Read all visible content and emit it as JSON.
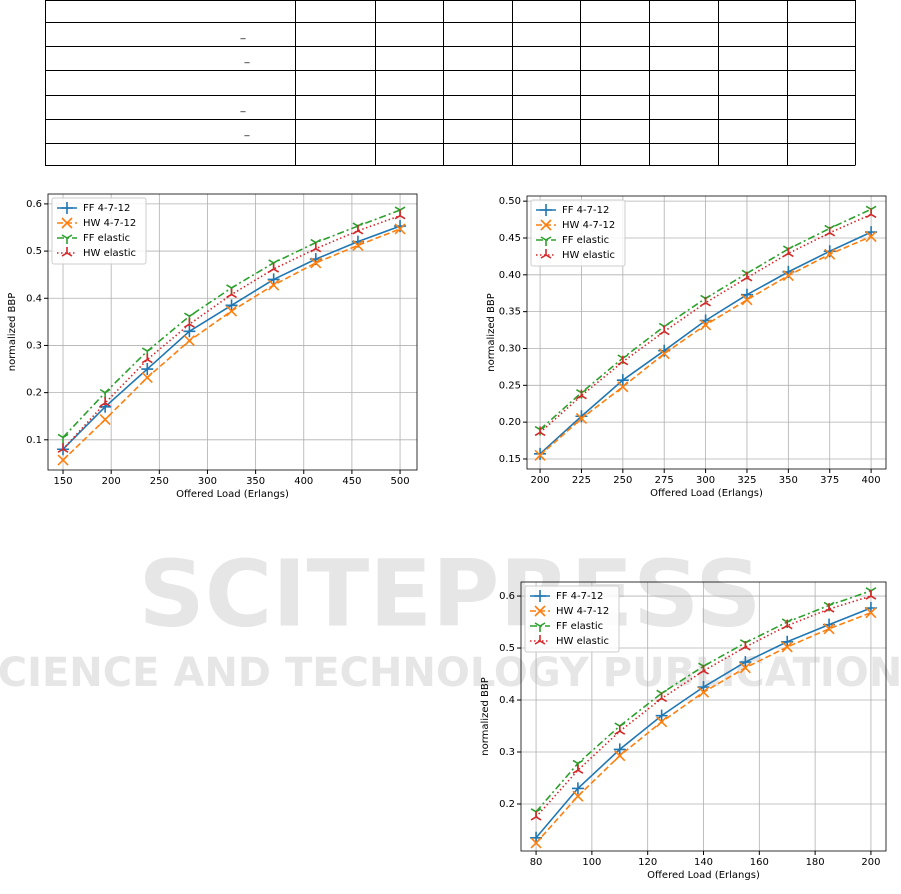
{
  "table": {
    "marks": [
      "_",
      "_",
      "_",
      "_"
    ]
  },
  "watermark": {
    "title": "SCITEPRESS",
    "subtitle": "SCIENCE AND TECHNOLOGY PUBLICATIONS"
  },
  "chart_data": [
    {
      "type": "line",
      "xlabel": "Offered Load (Erlangs)",
      "ylabel": "normalized BBP",
      "grid": true,
      "legend": "upper left",
      "x": [
        150,
        193.75,
        237.5,
        281.25,
        325,
        368.75,
        412.5,
        456.25,
        500
      ],
      "xlim": [
        134.4,
        517.6
      ],
      "xticks": [
        150,
        200,
        250,
        300,
        350,
        400,
        450,
        500
      ],
      "ylim": [
        0.036,
        0.621
      ],
      "yticks": [
        0.1,
        0.2,
        0.3,
        0.4,
        0.5,
        0.6
      ],
      "series": [
        {
          "name": "FF 4-7-12",
          "color": "#1f77b4",
          "linestyle": "solid",
          "marker": "plus",
          "values": [
            0.08,
            0.17,
            0.25,
            0.33,
            0.385,
            0.44,
            0.483,
            0.52,
            0.553
          ]
        },
        {
          "name": "HW 4-7-12",
          "color": "#ff7f0e",
          "linestyle": "dashed",
          "marker": "x",
          "values": [
            0.057,
            0.143,
            0.232,
            0.31,
            0.373,
            0.428,
            0.475,
            0.512,
            0.547
          ]
        },
        {
          "name": "FF elastic",
          "color": "#2ca02c",
          "linestyle": "dashdot",
          "marker": "tri_down",
          "values": [
            0.105,
            0.2,
            0.288,
            0.362,
            0.422,
            0.475,
            0.518,
            0.553,
            0.587
          ]
        },
        {
          "name": "HW elastic",
          "color": "#d62728",
          "linestyle": "dotted",
          "marker": "tri_up",
          "values": [
            0.08,
            0.178,
            0.27,
            0.345,
            0.408,
            0.462,
            0.505,
            0.543,
            0.575
          ]
        }
      ]
    },
    {
      "type": "line",
      "xlabel": "Offered Load (Erlangs)",
      "ylabel": "normalized BBP",
      "grid": true,
      "legend": "upper left",
      "x": [
        200,
        225,
        250,
        275,
        300,
        325,
        350,
        375,
        400
      ],
      "xlim": [
        192.1,
        409
      ],
      "xticks": [
        200,
        225,
        250,
        275,
        300,
        325,
        350,
        375,
        400
      ],
      "ylim": [
        0.1364,
        0.507
      ],
      "yticks": [
        0.15,
        {
          "value": 0.2,
          "label": "0.20"
        },
        0.25,
        {
          "value": 0.3,
          "label": "0.30"
        },
        0.35,
        {
          "value": 0.4,
          "label": "0.40"
        },
        0.45,
        {
          "value": 0.5,
          "label": "0.50"
        }
      ],
      "series": [
        {
          "name": "FF 4-7-12",
          "color": "#1f77b4",
          "linestyle": "solid",
          "marker": "plus",
          "values": [
            0.157,
            0.208,
            0.257,
            0.297,
            0.338,
            0.373,
            0.404,
            0.432,
            0.458
          ]
        },
        {
          "name": "HW 4-7-12",
          "color": "#ff7f0e",
          "linestyle": "dashed",
          "marker": "x",
          "values": [
            0.155,
            0.205,
            0.248,
            0.293,
            0.332,
            0.366,
            0.399,
            0.428,
            0.452
          ]
        },
        {
          "name": "FF elastic",
          "color": "#2ca02c",
          "linestyle": "dashdot",
          "marker": "tri_down",
          "values": [
            0.19,
            0.24,
            0.287,
            0.33,
            0.368,
            0.402,
            0.435,
            0.463,
            0.489
          ]
        },
        {
          "name": "HW elastic",
          "color": "#d62728",
          "linestyle": "dotted",
          "marker": "tri_up",
          "values": [
            0.186,
            0.236,
            0.282,
            0.323,
            0.362,
            0.396,
            0.429,
            0.457,
            0.482
          ]
        }
      ]
    },
    {
      "type": "line",
      "xlabel": "Offered Load (Erlangs)",
      "ylabel": "normalized BBP",
      "grid": true,
      "legend": "upper left",
      "x": [
        80,
        95,
        110,
        125,
        140,
        155,
        170,
        185,
        200
      ],
      "xlim": [
        74.6,
        205.4
      ],
      "xticks": [
        80,
        100,
        120,
        140,
        160,
        180,
        200
      ],
      "ylim": [
        0.1096,
        0.627
      ],
      "yticks": [
        0.2,
        0.3,
        0.4,
        0.5,
        0.6
      ],
      "series": [
        {
          "name": "FF 4-7-12",
          "color": "#1f77b4",
          "linestyle": "solid",
          "marker": "plus",
          "values": [
            0.135,
            0.23,
            0.305,
            0.37,
            0.425,
            0.473,
            0.512,
            0.545,
            0.577
          ]
        },
        {
          "name": "HW 4-7-12",
          "color": "#ff7f0e",
          "linestyle": "dashed",
          "marker": "x",
          "values": [
            0.125,
            0.215,
            0.293,
            0.358,
            0.415,
            0.462,
            0.502,
            0.537,
            0.568
          ]
        },
        {
          "name": "FF elastic",
          "color": "#2ca02c",
          "linestyle": "dashdot",
          "marker": "tri_down",
          "values": [
            0.185,
            0.278,
            0.35,
            0.413,
            0.465,
            0.51,
            0.55,
            0.582,
            0.61
          ]
        },
        {
          "name": "HW elastic",
          "color": "#d62728",
          "linestyle": "dotted",
          "marker": "tri_up",
          "values": [
            0.175,
            0.265,
            0.34,
            0.403,
            0.456,
            0.502,
            0.543,
            0.575,
            0.6
          ]
        }
      ]
    }
  ]
}
